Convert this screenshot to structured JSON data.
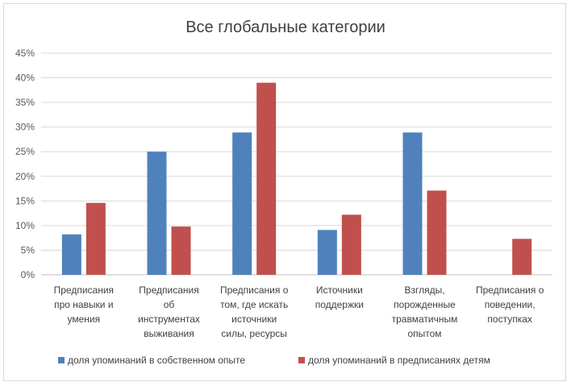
{
  "chart_data": {
    "type": "bar",
    "title": "Все глобальные категории",
    "xlabel": "",
    "ylabel": "",
    "ylim": [
      0,
      45
    ],
    "yticks": [
      "0%",
      "5%",
      "10%",
      "15%",
      "20%",
      "25%",
      "30%",
      "35%",
      "40%",
      "45%"
    ],
    "grid": true,
    "legend": "bottom",
    "categories": [
      [
        "Предписания",
        "про навыки и",
        "умения"
      ],
      [
        "Предписания",
        "об",
        "инструментах",
        "выживания"
      ],
      [
        "Предписания о",
        "том, где искать",
        "источники",
        "силы, ресурсы"
      ],
      [
        "Источники",
        "поддержки"
      ],
      [
        "Взгляды,",
        "порожденные",
        "травматичным",
        "опытом"
      ],
      [
        "Предписания о",
        "поведении,",
        "поступках"
      ]
    ],
    "series": [
      {
        "name": "доля упоминаний в собственном опыте",
        "color": "#4f81bd",
        "values": [
          8.2,
          25.0,
          28.9,
          9.1,
          28.9,
          0
        ]
      },
      {
        "name": "доля упоминаний в предписаниях детям",
        "color": "#c0504d",
        "values": [
          14.6,
          9.8,
          39.0,
          12.2,
          17.1,
          7.3
        ]
      }
    ]
  }
}
